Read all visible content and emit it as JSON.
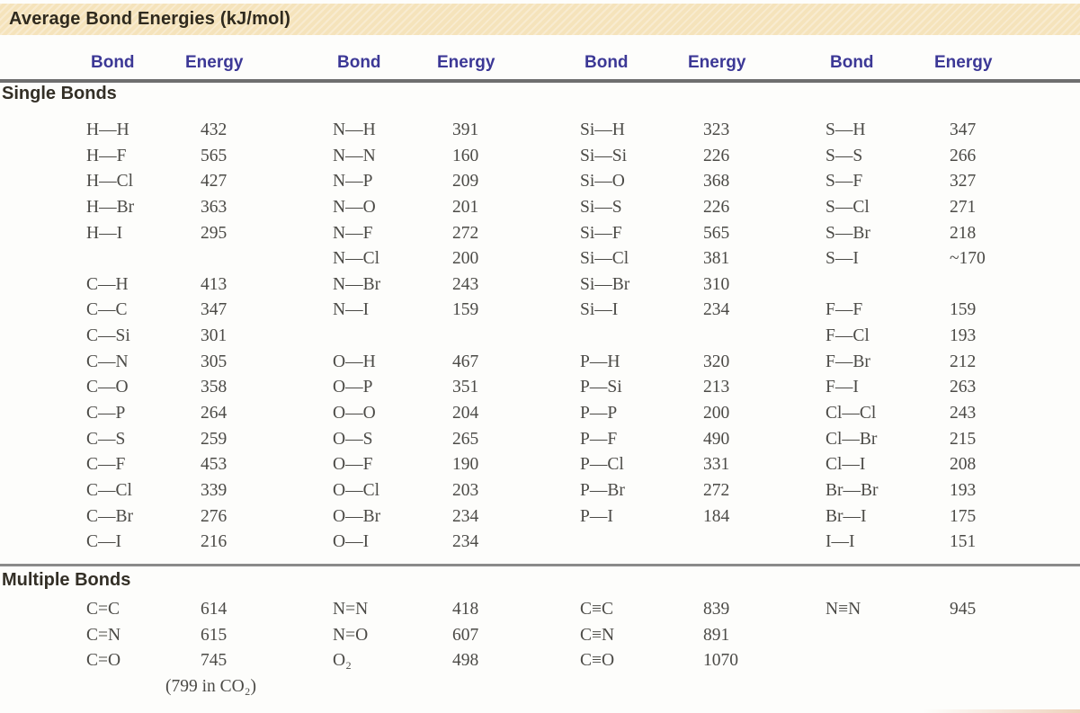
{
  "title": "Average Bond Energies (kJ/mol)",
  "columns": {
    "bond_label": "Bond",
    "energy_label": "Energy",
    "group_count": 4
  },
  "colors": {
    "banner_background": "#F5E3BB",
    "header_text": "#3C3896",
    "body_text": "#4B4A46"
  },
  "sections": [
    {
      "label": "Single Bonds",
      "rows": [
        [
          "H—H",
          "432",
          "N—H",
          "391",
          "Si—H",
          "323",
          "S—H",
          "347"
        ],
        [
          "H—F",
          "565",
          "N—N",
          "160",
          "Si—Si",
          "226",
          "S—S",
          "266"
        ],
        [
          "H—Cl",
          "427",
          "N—P",
          "209",
          "Si—O",
          "368",
          "S—F",
          "327"
        ],
        [
          "H—Br",
          "363",
          "N—O",
          "201",
          "Si—S",
          "226",
          "S—Cl",
          "271"
        ],
        [
          "H—I",
          "295",
          "N—F",
          "272",
          "Si—F",
          "565",
          "S—Br",
          "218"
        ],
        [
          "",
          "",
          "N—Cl",
          "200",
          "Si—Cl",
          "381",
          "S—I",
          "~170"
        ],
        [
          "C—H",
          "413",
          "N—Br",
          "243",
          "Si—Br",
          "310",
          "",
          ""
        ],
        [
          "C—C",
          "347",
          "N—I",
          "159",
          "Si—I",
          "234",
          "F—F",
          "159"
        ],
        [
          "C—Si",
          "301",
          "",
          "",
          "",
          "",
          "F—Cl",
          "193"
        ],
        [
          "C—N",
          "305",
          "O—H",
          "467",
          "P—H",
          "320",
          "F—Br",
          "212"
        ],
        [
          "C—O",
          "358",
          "O—P",
          "351",
          "P—Si",
          "213",
          "F—I",
          "263"
        ],
        [
          "C—P",
          "264",
          "O—O",
          "204",
          "P—P",
          "200",
          "Cl—Cl",
          "243"
        ],
        [
          "C—S",
          "259",
          "O—S",
          "265",
          "P—F",
          "490",
          "Cl—Br",
          "215"
        ],
        [
          "C—F",
          "453",
          "O—F",
          "190",
          "P—Cl",
          "331",
          "Cl—I",
          "208"
        ],
        [
          "C—Cl",
          "339",
          "O—Cl",
          "203",
          "P—Br",
          "272",
          "Br—Br",
          "193"
        ],
        [
          "C—Br",
          "276",
          "O—Br",
          "234",
          "P—I",
          "184",
          "Br—I",
          "175"
        ],
        [
          "C—I",
          "216",
          "O—I",
          "234",
          "",
          "",
          "I—I",
          "151"
        ]
      ]
    },
    {
      "label": "Multiple Bonds",
      "rows": [
        [
          "C=C",
          "614",
          "N=N",
          "418",
          "C≡C",
          "839",
          "N≡N",
          "945"
        ],
        [
          "C=N",
          "615",
          "N=O",
          "607",
          "C≡N",
          "891",
          "",
          ""
        ],
        [
          "C=O",
          "745",
          "O₂",
          "498",
          "C≡O",
          "1070",
          "",
          ""
        ],
        [
          "",
          "(799 in CO₂)",
          "",
          "",
          "",
          "",
          "",
          ""
        ]
      ]
    }
  ]
}
